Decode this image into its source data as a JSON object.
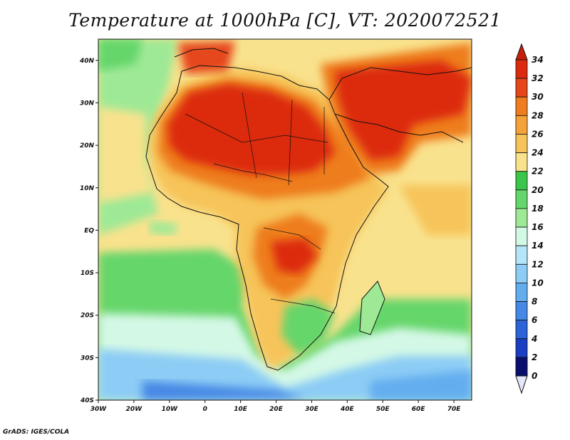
{
  "title": "Temperature at 1000hPa [C], VT: 2020072521",
  "credit": "GrADS: IGES/COLA",
  "map": {
    "type": "filled-contour-map",
    "variable": "Temperature at 1000hPa",
    "units": "C",
    "valid_time": "2020072521",
    "lon_range": [
      -30,
      75
    ],
    "lat_range": [
      -40,
      45
    ],
    "x_ticks": [
      "30W",
      "20W",
      "10W",
      "0",
      "10E",
      "20E",
      "30E",
      "40E",
      "50E",
      "60E",
      "70E"
    ],
    "y_ticks": [
      "40N",
      "30N",
      "20N",
      "10N",
      "EQ",
      "10S",
      "20S",
      "30S",
      "40S"
    ]
  },
  "colorbar": {
    "labels": [
      "34",
      "32",
      "30",
      "28",
      "26",
      "24",
      "22",
      "20",
      "18",
      "16",
      "14",
      "12",
      "10",
      "8",
      "6",
      "4",
      "2",
      "0"
    ],
    "levels": [
      34,
      32,
      30,
      28,
      26,
      24,
      22,
      20,
      18,
      16,
      14,
      12,
      10,
      8,
      6,
      4,
      2,
      0
    ],
    "colors": [
      "#dc2a10",
      "#e6461a",
      "#ee7d1f",
      "#f4a23a",
      "#f6c45a",
      "#f9e28d",
      "#3cc54b",
      "#65d66b",
      "#9ee995",
      "#d4f8e6",
      "#b4e6f8",
      "#8cccf5",
      "#63adef",
      "#4688e5",
      "#2c63d6",
      "#1a3fc2",
      "#0d22a6",
      "#0a0f6e"
    ],
    "over_color": "#c81e08",
    "under_color": "#e4e6fa"
  }
}
